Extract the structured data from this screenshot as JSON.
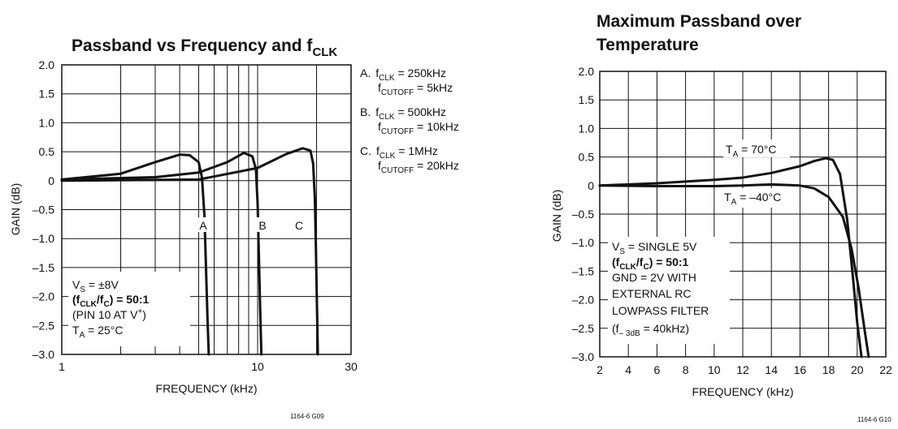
{
  "chart_data": [
    {
      "type": "line",
      "title": "Passband vs Frequency and f",
      "title_sub": "CLK",
      "xlabel": "FREQUENCY (kHz)",
      "ylabel": "GAIN (dB)",
      "xscale": "log",
      "xlim": [
        1,
        30
      ],
      "ylim": [
        -3.0,
        2.0
      ],
      "x_ticks": [
        1,
        10,
        30
      ],
      "x_tick_labels": [
        "1",
        "10",
        "30"
      ],
      "y_ticks": [
        2.0,
        1.5,
        1.0,
        0.5,
        0,
        -0.5,
        -1.0,
        -1.5,
        -2.0,
        -2.5,
        -3.0
      ],
      "y_tick_labels": [
        "2.0",
        "1.5",
        "1.0",
        "0.5",
        "0",
        "–0.5",
        "–1.0",
        "–1.5",
        "–2.0",
        "–2.5",
        "–3.0"
      ],
      "grid": true,
      "series": [
        {
          "name": "A",
          "x": [
            1,
            2,
            3,
            4,
            4.5,
            5,
            5.2,
            5.35,
            5.45,
            5.55,
            5.63
          ],
          "y": [
            0.02,
            0.12,
            0.32,
            0.45,
            0.44,
            0.32,
            0.05,
            -0.6,
            -1.5,
            -2.4,
            -3.0
          ]
        },
        {
          "name": "B",
          "x": [
            1,
            3,
            5,
            7,
            8.5,
            9.4,
            9.8,
            10.0,
            10.15,
            10.3,
            10.45
          ],
          "y": [
            0.02,
            0.06,
            0.14,
            0.32,
            0.48,
            0.42,
            0.2,
            -0.4,
            -1.3,
            -2.2,
            -3.0
          ]
        },
        {
          "name": "C",
          "x": [
            1,
            5,
            10,
            14,
            17,
            18.6,
            19.2,
            19.6,
            19.85,
            20.1,
            20.3
          ],
          "y": [
            0.0,
            0.02,
            0.22,
            0.46,
            0.56,
            0.52,
            0.3,
            -0.3,
            -1.2,
            -2.2,
            -3.0
          ]
        }
      ],
      "curve_labels": [
        "A",
        "B",
        "C"
      ],
      "legend_entries": [
        {
          "letter": "A.",
          "clk_prefix": "f",
          "clk_sub": "CLK",
          "clk_value": " = 250kHz",
          "cut_prefix": "f",
          "cut_sub": "CUTOFF",
          "cut_value": " = 5kHz"
        },
        {
          "letter": "B.",
          "clk_prefix": "f",
          "clk_sub": "CLK",
          "clk_value": " = 500kHz",
          "cut_prefix": "f",
          "cut_sub": "CUTOFF",
          "cut_value": " = 10kHz"
        },
        {
          "letter": "C.",
          "clk_prefix": "f",
          "clk_sub": "CLK",
          "clk_value": " = 1MHz",
          "cut_prefix": "f",
          "cut_sub": "CUTOFF",
          "cut_value": " = 20kHz"
        }
      ],
      "legend_position": "right",
      "notes": {
        "vs_prefix": "V",
        "vs_sub": "S",
        "vs_value": " = ±8V",
        "ratio_open": "(f",
        "ratio_sub1": "CLK",
        "ratio_mid": "/f",
        "ratio_sub2": "C",
        "ratio_close": ") = 50:1",
        "pin_prefix": "(PIN 10 AT V",
        "pin_sup": "+",
        "pin_close": ")",
        "ta_prefix": "T",
        "ta_sub": "A",
        "ta_value": " = 25°C"
      },
      "figure_code": "1164-6 G09"
    },
    {
      "type": "line",
      "title_line1": "Maximum Passband over",
      "title_line2": "Temperature",
      "xlabel": "FREQUENCY (kHz)",
      "ylabel": "GAIN (dB)",
      "xlim": [
        2,
        22
      ],
      "ylim": [
        -3.0,
        2.0
      ],
      "x_ticks": [
        2,
        4,
        6,
        8,
        10,
        12,
        14,
        16,
        18,
        20,
        22
      ],
      "x_tick_labels": [
        "2",
        "4",
        "6",
        "8",
        "10",
        "12",
        "14",
        "16",
        "18",
        "20",
        "22"
      ],
      "y_ticks": [
        2.0,
        1.5,
        1.0,
        0.5,
        0,
        -0.5,
        -1.0,
        -1.5,
        -2.0,
        -2.5,
        -3.0
      ],
      "y_tick_labels": [
        "2.0",
        "1.5",
        "1.0",
        "0.5",
        "0",
        "–0.5",
        "–1.0",
        "–1.5",
        "–2.0",
        "–2.5",
        "–3.0"
      ],
      "grid": true,
      "series": [
        {
          "name": "T_A = 70°C",
          "x": [
            2,
            6,
            10,
            12,
            14,
            16,
            17,
            17.8,
            18.3,
            18.8,
            19.3,
            19.7,
            20.0,
            20.3
          ],
          "y": [
            0,
            0.04,
            0.1,
            0.14,
            0.22,
            0.34,
            0.43,
            0.48,
            0.45,
            0.2,
            -0.6,
            -1.6,
            -2.4,
            -3.0
          ]
        },
        {
          "name": "T_A = –40°C",
          "x": [
            2,
            6,
            10,
            12,
            14,
            16,
            17,
            18,
            19,
            19.6,
            20.1,
            20.5,
            20.8
          ],
          "y": [
            0,
            -0.01,
            -0.01,
            0.0,
            0.02,
            0.0,
            -0.05,
            -0.2,
            -0.55,
            -1.1,
            -1.8,
            -2.5,
            -3.0
          ]
        }
      ],
      "series_labels": [
        {
          "prefix": "T",
          "sub": "A",
          "value": " = 70°C"
        },
        {
          "prefix": "T",
          "sub": "A",
          "value": " = –40°C"
        }
      ],
      "notes": {
        "vs_prefix": "V",
        "vs_sub": "S",
        "vs_value": " = SINGLE 5V",
        "ratio_open": "(f",
        "ratio_sub1": "CLK",
        "ratio_mid": "/f",
        "ratio_sub2": "C",
        "ratio_close": ") = 50:1",
        "line3": "GND = 2V WITH",
        "line4": "EXTERNAL RC",
        "line5": "LOWPASS FILTER",
        "f3db_open": "(f",
        "f3db_sub": "– 3dB",
        "f3db_value": " = 40kHz)"
      },
      "figure_code": "1164-6 G10"
    }
  ]
}
